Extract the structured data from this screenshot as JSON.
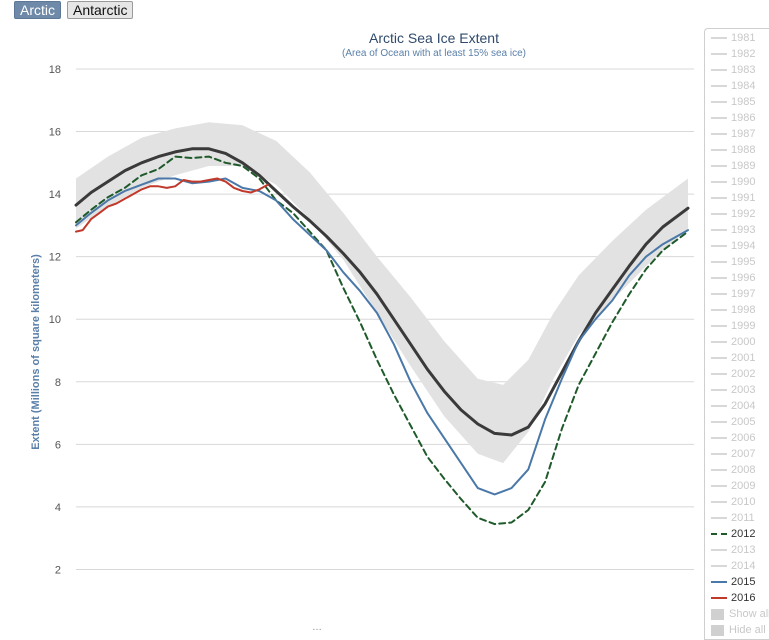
{
  "tabs": [
    {
      "label": "Arctic",
      "active": true
    },
    {
      "label": "Antarctic",
      "active": false
    }
  ],
  "chart_data": {
    "type": "line",
    "title": "Arctic Sea Ice Extent",
    "subtitle": "(Area of Ocean with at least 15% sea ice)",
    "ylabel": "Extent (Millions of square kilometers)",
    "xlabel": "",
    "ylim": [
      0,
      18
    ],
    "yticks": [
      2,
      4,
      6,
      8,
      10,
      12,
      14,
      16,
      18
    ],
    "xlim": [
      1,
      365
    ],
    "grid": true,
    "legend_position": "right",
    "credit": "…",
    "colors": {
      "average": "#3a3a3a",
      "range_band": "#e2e2e2",
      "2012": "#1f5a2b",
      "2015": "#4a78a8",
      "2016": "#c0392b",
      "title": "#2f4a6b",
      "ylabel": "#5a7fa8"
    },
    "band": {
      "name": "",
      "x": [
        1,
        20,
        40,
        60,
        80,
        100,
        120,
        140,
        160,
        180,
        200,
        220,
        240,
        255,
        270,
        285,
        300,
        320,
        340,
        365
      ],
      "low": [
        12.9,
        13.6,
        14.2,
        14.6,
        14.9,
        14.9,
        14.3,
        13.2,
        11.9,
        10.2,
        8.5,
        6.9,
        5.7,
        5.4,
        6.4,
        8.1,
        9.5,
        10.6,
        11.7,
        12.9
      ],
      "high": [
        14.5,
        15.2,
        15.8,
        16.1,
        16.3,
        16.2,
        15.7,
        14.7,
        13.4,
        12.0,
        10.7,
        9.3,
        8.1,
        7.9,
        8.7,
        10.2,
        11.4,
        12.5,
        13.5,
        14.5
      ]
    },
    "series": [
      {
        "name": "",
        "style": "solid-thick",
        "x": [
          1,
          10,
          20,
          30,
          40,
          50,
          60,
          70,
          80,
          90,
          100,
          110,
          120,
          130,
          140,
          150,
          160,
          170,
          180,
          190,
          200,
          210,
          220,
          230,
          240,
          250,
          260,
          270,
          280,
          290,
          300,
          310,
          320,
          330,
          340,
          350,
          365
        ],
        "values": [
          13.65,
          14.05,
          14.4,
          14.75,
          15.0,
          15.2,
          15.35,
          15.45,
          15.45,
          15.3,
          15.0,
          14.6,
          14.1,
          13.6,
          13.15,
          12.65,
          12.1,
          11.5,
          10.8,
          10.0,
          9.2,
          8.4,
          7.7,
          7.1,
          6.65,
          6.35,
          6.3,
          6.55,
          7.3,
          8.3,
          9.3,
          10.2,
          10.95,
          11.7,
          12.4,
          12.95,
          13.55
        ]
      },
      {
        "name": "2012",
        "style": "dashed",
        "x": [
          1,
          10,
          20,
          30,
          40,
          50,
          60,
          70,
          80,
          90,
          100,
          110,
          120,
          130,
          140,
          150,
          160,
          170,
          180,
          190,
          200,
          210,
          220,
          230,
          240,
          250,
          260,
          270,
          280,
          290,
          300,
          310,
          320,
          330,
          340,
          350,
          365
        ],
        "values": [
          13.1,
          13.5,
          13.9,
          14.2,
          14.6,
          14.8,
          15.2,
          15.15,
          15.2,
          15.0,
          14.9,
          14.5,
          13.8,
          13.4,
          12.8,
          12.2,
          11.0,
          9.9,
          8.7,
          7.6,
          6.6,
          5.6,
          4.9,
          4.25,
          3.65,
          3.45,
          3.5,
          3.9,
          4.8,
          6.5,
          7.9,
          8.9,
          9.9,
          10.8,
          11.6,
          12.2,
          12.8
        ]
      },
      {
        "name": "2015",
        "style": "solid",
        "x": [
          1,
          10,
          20,
          30,
          40,
          50,
          60,
          70,
          80,
          90,
          100,
          110,
          120,
          130,
          140,
          150,
          160,
          170,
          180,
          190,
          200,
          210,
          220,
          230,
          240,
          250,
          260,
          270,
          280,
          290,
          300,
          310,
          320,
          330,
          340,
          350,
          365
        ],
        "values": [
          13.0,
          13.4,
          13.8,
          14.1,
          14.3,
          14.5,
          14.5,
          14.35,
          14.4,
          14.5,
          14.2,
          14.1,
          13.8,
          13.2,
          12.7,
          12.2,
          11.5,
          10.9,
          10.2,
          9.2,
          8.0,
          7.0,
          6.2,
          5.4,
          4.6,
          4.4,
          4.6,
          5.2,
          6.8,
          8.1,
          9.3,
          10.0,
          10.6,
          11.4,
          12.0,
          12.4,
          12.85
        ]
      },
      {
        "name": "2016",
        "style": "solid",
        "x": [
          1,
          5,
          10,
          15,
          20,
          25,
          30,
          35,
          40,
          45,
          50,
          55,
          60,
          65,
          70,
          75,
          80,
          85,
          90,
          95,
          100,
          105,
          110,
          115
        ],
        "values": [
          12.8,
          12.85,
          13.2,
          13.4,
          13.6,
          13.7,
          13.85,
          14.0,
          14.15,
          14.25,
          14.25,
          14.2,
          14.25,
          14.45,
          14.4,
          14.4,
          14.45,
          14.5,
          14.4,
          14.2,
          14.1,
          14.05,
          14.15,
          14.3
        ]
      }
    ]
  },
  "legend": {
    "items": [
      {
        "label": "1981",
        "active": false,
        "swatch": "line"
      },
      {
        "label": "1982",
        "active": false,
        "swatch": "line"
      },
      {
        "label": "1983",
        "active": false,
        "swatch": "line"
      },
      {
        "label": "1984",
        "active": false,
        "swatch": "line"
      },
      {
        "label": "1985",
        "active": false,
        "swatch": "line"
      },
      {
        "label": "1986",
        "active": false,
        "swatch": "line"
      },
      {
        "label": "1987",
        "active": false,
        "swatch": "line"
      },
      {
        "label": "1988",
        "active": false,
        "swatch": "line"
      },
      {
        "label": "1989",
        "active": false,
        "swatch": "line"
      },
      {
        "label": "1990",
        "active": false,
        "swatch": "line"
      },
      {
        "label": "1991",
        "active": false,
        "swatch": "line"
      },
      {
        "label": "1992",
        "active": false,
        "swatch": "line"
      },
      {
        "label": "1993",
        "active": false,
        "swatch": "line"
      },
      {
        "label": "1994",
        "active": false,
        "swatch": "line"
      },
      {
        "label": "1995",
        "active": false,
        "swatch": "line"
      },
      {
        "label": "1996",
        "active": false,
        "swatch": "line"
      },
      {
        "label": "1997",
        "active": false,
        "swatch": "line"
      },
      {
        "label": "1998",
        "active": false,
        "swatch": "line"
      },
      {
        "label": "1999",
        "active": false,
        "swatch": "line"
      },
      {
        "label": "2000",
        "active": false,
        "swatch": "line"
      },
      {
        "label": "2001",
        "active": false,
        "swatch": "line"
      },
      {
        "label": "2002",
        "active": false,
        "swatch": "line"
      },
      {
        "label": "2003",
        "active": false,
        "swatch": "line"
      },
      {
        "label": "2004",
        "active": false,
        "swatch": "line"
      },
      {
        "label": "2005",
        "active": false,
        "swatch": "line"
      },
      {
        "label": "2006",
        "active": false,
        "swatch": "line"
      },
      {
        "label": "2007",
        "active": false,
        "swatch": "line"
      },
      {
        "label": "2008",
        "active": false,
        "swatch": "line"
      },
      {
        "label": "2009",
        "active": false,
        "swatch": "line"
      },
      {
        "label": "2010",
        "active": false,
        "swatch": "line"
      },
      {
        "label": "2011",
        "active": false,
        "swatch": "line"
      },
      {
        "label": "2012",
        "active": true,
        "swatch": "dash",
        "color": "#1f5a2b"
      },
      {
        "label": "2013",
        "active": false,
        "swatch": "line"
      },
      {
        "label": "2014",
        "active": false,
        "swatch": "line"
      },
      {
        "label": "2015",
        "active": true,
        "swatch": "line",
        "color": "#4a78a8"
      },
      {
        "label": "2016",
        "active": true,
        "swatch": "line",
        "color": "#c0392b"
      },
      {
        "label": "Show all",
        "active": false,
        "swatch": "box"
      },
      {
        "label": "Hide all",
        "active": false,
        "swatch": "box"
      }
    ]
  }
}
